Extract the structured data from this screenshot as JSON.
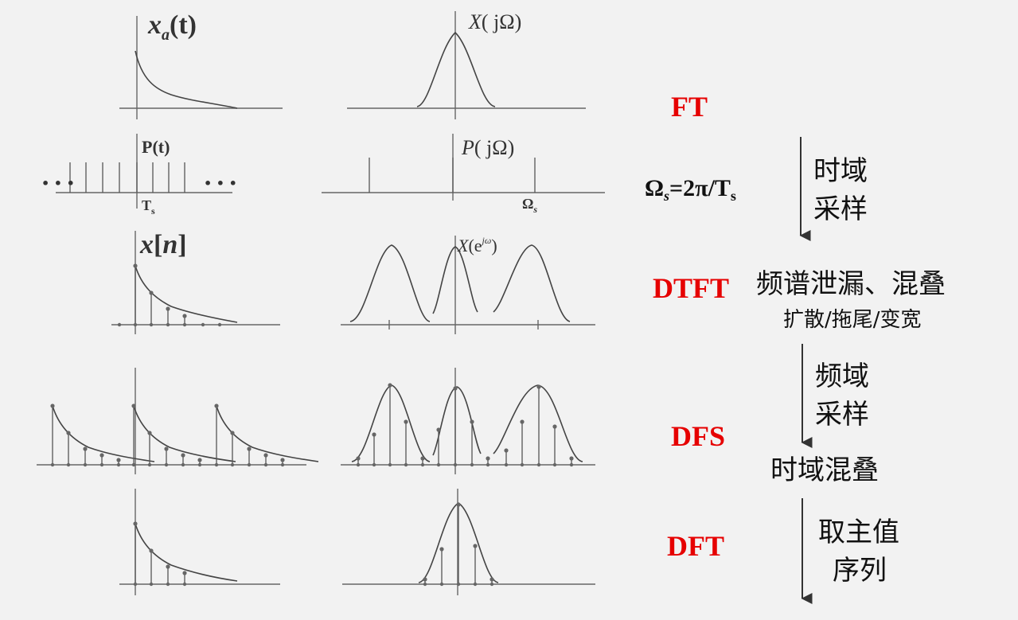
{
  "panels": {
    "xa": {
      "fn": "x",
      "sub": "a",
      "arg": "(t)"
    },
    "X": {
      "fn": "X",
      "arg": "( jΩ)"
    },
    "P": {
      "label": "P(t)"
    },
    "Ts": {
      "main": "T",
      "sub": "s"
    },
    "PjO": {
      "fn": "P",
      "arg": "( jΩ)"
    },
    "Os": {
      "main": "Ω",
      "sub": "s"
    },
    "xn": {
      "fn": "x",
      "bracket_l": "[",
      "var": "n",
      "bracket_r": "]"
    },
    "Xejw": {
      "fn": "X",
      "open": "(e",
      "sup": "jω",
      "close": ")"
    },
    "dots_left": "• • •",
    "dots_right": "• • •"
  },
  "labels": {
    "ft": "FT",
    "dtft": "DTFT",
    "dfs": "DFS",
    "dft": "DFT",
    "omega_s": "Ω",
    "omega_s_sub": "s",
    "omega_s_rest": "=2π/T",
    "omega_s_rest_sub": "s",
    "time_domain_sampling_1": "时域",
    "time_domain_sampling_2": "采样",
    "leakage_1": "频谱泄漏、混叠",
    "leakage_2": "扩散/拖尾/变宽",
    "freq_sampling_1": "频域",
    "freq_sampling_2": "采样",
    "time_aliasing": "时域混叠",
    "principal_1": "取主值",
    "principal_2": "序列"
  },
  "colors": {
    "accent_red": "#e60000",
    "text": "#111111",
    "curve": "#444444"
  }
}
